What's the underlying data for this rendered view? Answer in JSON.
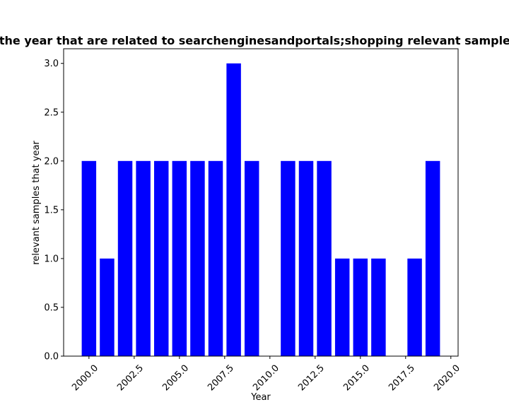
{
  "chart_data": {
    "type": "bar",
    "title": "Number of samples in the year that are related to searchenginesandportals;shopping relevant samples that year in proportion",
    "xlabel": "Year",
    "ylabel": "relevant samples that year",
    "x": [
      2000,
      2001,
      2002,
      2003,
      2004,
      2005,
      2006,
      2007,
      2008,
      2009,
      2011,
      2012,
      2013,
      2014,
      2015,
      2016,
      2018,
      2019
    ],
    "values": [
      2,
      1,
      2,
      2,
      2,
      2,
      2,
      2,
      3,
      2,
      2,
      2,
      2,
      1,
      1,
      1,
      1,
      2
    ],
    "xlim": [
      1998.6,
      2020.4
    ],
    "ylim": [
      0,
      3.15
    ],
    "xticks": [
      "2000.0",
      "2002.5",
      "2005.0",
      "2007.5",
      "2010.0",
      "2012.5",
      "2015.0",
      "2017.5",
      "2020.0"
    ],
    "yticks": [
      "0.0",
      "0.5",
      "1.0",
      "1.5",
      "2.0",
      "2.5",
      "3.0"
    ],
    "bar_color": "#0000ff",
    "grid": false,
    "legend": false
  }
}
